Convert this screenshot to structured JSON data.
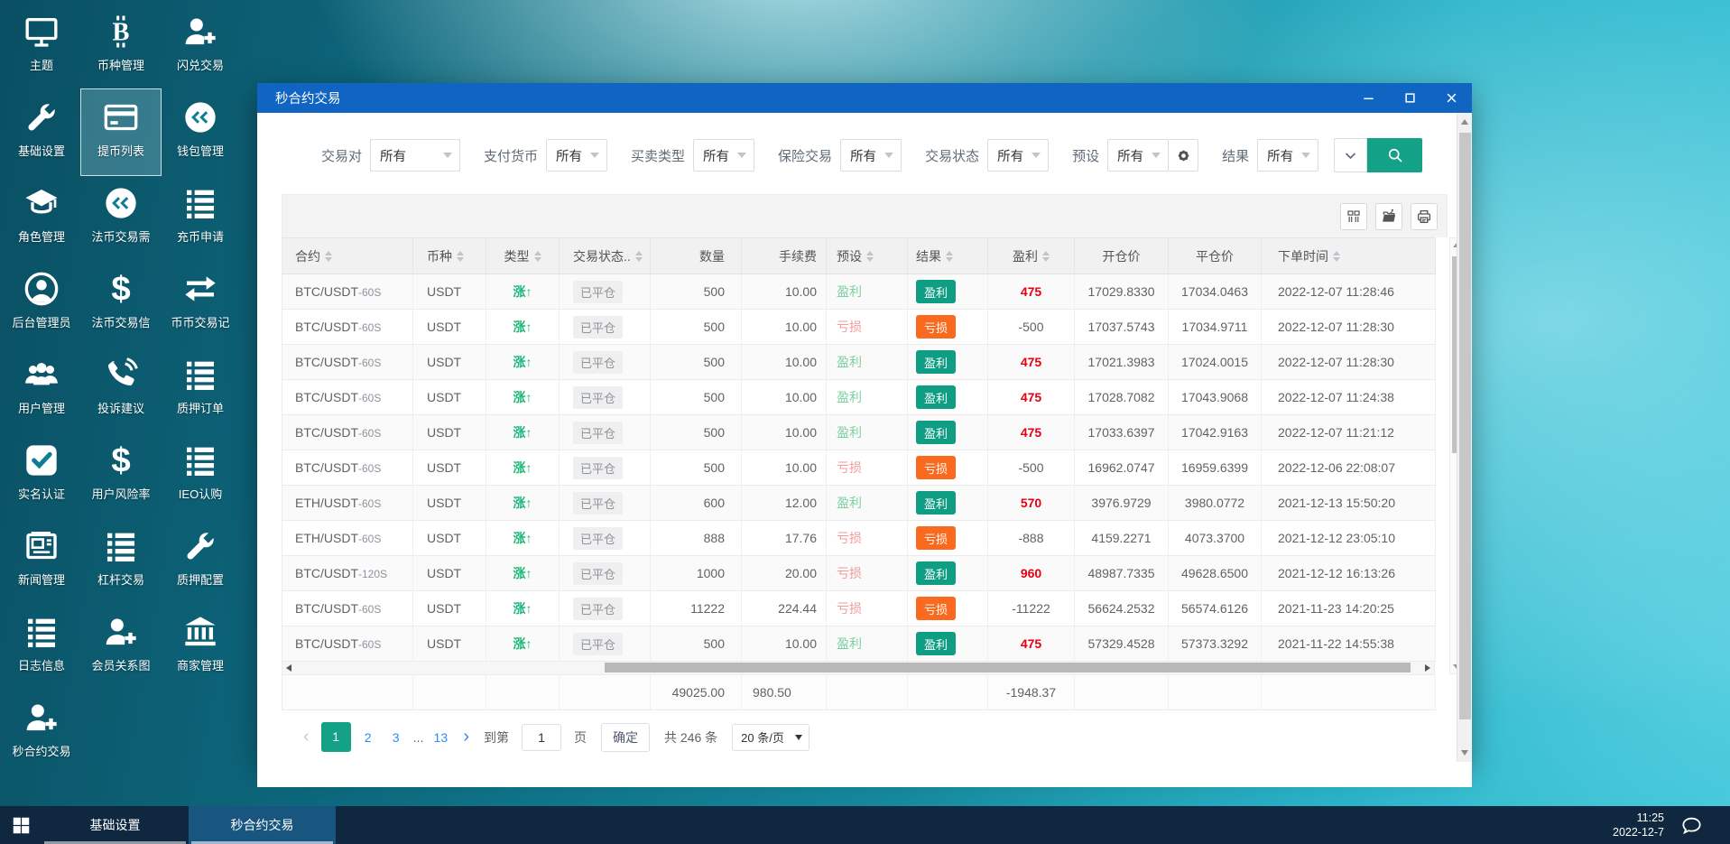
{
  "colors": {
    "titlebar": "#1065c3",
    "teal": "#13a287",
    "badge_win": "#0f9e83",
    "badge_loss": "#fa6a1e",
    "profit_red": "#e60012",
    "type_green": "#1db779",
    "preset_win": "#7fd0a2",
    "preset_loss": "#f29b9b",
    "link_blue": "#2d8cf0",
    "taskbar": "#0f2840"
  },
  "desktop": {
    "icons": [
      {
        "label": "主题",
        "icon": "monitor-icon"
      },
      {
        "label": "币种管理",
        "icon": "bitcoin-icon"
      },
      {
        "label": "闪兑交易",
        "icon": "user-plus-icon"
      },
      {
        "label": "基础设置",
        "icon": "wrench-icon"
      },
      {
        "label": "提币列表",
        "icon": "card-icon",
        "selected": true
      },
      {
        "label": "钱包管理",
        "icon": "coin-icon"
      },
      {
        "label": "角色管理",
        "icon": "graduation-cap-icon"
      },
      {
        "label": "法币交易需",
        "icon": "coin-icon"
      },
      {
        "label": "充币申请",
        "icon": "list-icon"
      },
      {
        "label": "后台管理员",
        "icon": "user-circle-icon"
      },
      {
        "label": "法币交易信",
        "icon": "dollar-icon"
      },
      {
        "label": "币币交易记",
        "icon": "swap-icon"
      },
      {
        "label": "用户管理",
        "icon": "users-icon"
      },
      {
        "label": "投诉建议",
        "icon": "phone-icon"
      },
      {
        "label": "质押订单",
        "icon": "list-icon"
      },
      {
        "label": "实名认证",
        "icon": "check-square-icon"
      },
      {
        "label": "用户风险率",
        "icon": "dollar-icon"
      },
      {
        "label": "IEO认购",
        "icon": "list-icon"
      },
      {
        "label": "新闻管理",
        "icon": "newspaper-icon"
      },
      {
        "label": "杠杆交易",
        "icon": "list-icon"
      },
      {
        "label": "质押配置",
        "icon": "wrench-icon"
      },
      {
        "label": "日志信息",
        "icon": "list-icon"
      },
      {
        "label": "会员关系图",
        "icon": "user-plus-icon"
      },
      {
        "label": "商家管理",
        "icon": "bank-icon"
      },
      {
        "label": "秒合约交易",
        "icon": "user-plus-icon"
      }
    ]
  },
  "window": {
    "title": "秒合约交易",
    "controls": [
      {
        "name": "minimize-button",
        "icon": "minimize-icon"
      },
      {
        "name": "maximize-button",
        "icon": "maximize-icon"
      },
      {
        "name": "close-button",
        "icon": "close-icon"
      }
    ],
    "filters": {
      "items": [
        {
          "label": "交易对",
          "value": "所有",
          "wide": true
        },
        {
          "label": "支付货币",
          "value": "所有"
        },
        {
          "label": "买卖类型",
          "value": "所有"
        },
        {
          "label": "保险交易",
          "value": "所有"
        },
        {
          "label": "交易状态",
          "value": "所有"
        },
        {
          "label": "预设",
          "value": "所有",
          "gear": true
        },
        {
          "label": "结果",
          "value": "所有"
        }
      ],
      "collapse_icon": "chevron-down-icon",
      "search_icon": "search-icon"
    },
    "toolbar": [
      {
        "name": "column-settings-button",
        "icon": "columns-icon"
      },
      {
        "name": "export-button",
        "icon": "export-icon"
      },
      {
        "name": "print-button",
        "icon": "print-icon"
      }
    ],
    "table": {
      "columns": [
        {
          "label": "合约",
          "sortable": true
        },
        {
          "label": "币种",
          "sortable": true
        },
        {
          "label": "类型",
          "sortable": true
        },
        {
          "label": "交易状态..",
          "sortable": true
        },
        {
          "label": "数量",
          "sortable": false
        },
        {
          "label": "手续费",
          "sortable": false
        },
        {
          "label": "预设",
          "sortable": true
        },
        {
          "label": "结果",
          "sortable": true
        },
        {
          "label": "盈利",
          "sortable": true
        },
        {
          "label": "开仓价",
          "sortable": false
        },
        {
          "label": "平仓价",
          "sortable": false
        },
        {
          "label": "下单时间",
          "sortable": true
        }
      ],
      "rows": [
        {
          "contract": "BTC/USDT",
          "period": "-60S",
          "coin": "USDT",
          "type": "涨↑",
          "status": "已平仓",
          "qty": "500",
          "fee": "10.00",
          "preset": "盈利",
          "preset_state": "win",
          "result": "盈利",
          "result_state": "win",
          "profit": "475",
          "profit_state": "win",
          "open_price": "17029.8330",
          "close_price": "17034.0463",
          "time": "2022-12-07 11:28:46"
        },
        {
          "contract": "BTC/USDT",
          "period": "-60S",
          "coin": "USDT",
          "type": "涨↑",
          "status": "已平仓",
          "qty": "500",
          "fee": "10.00",
          "preset": "亏损",
          "preset_state": "loss",
          "result": "亏损",
          "result_state": "loss",
          "profit": "-500",
          "profit_state": "loss",
          "open_price": "17037.5743",
          "close_price": "17034.9711",
          "time": "2022-12-07 11:28:30"
        },
        {
          "contract": "BTC/USDT",
          "period": "-60S",
          "coin": "USDT",
          "type": "涨↑",
          "status": "已平仓",
          "qty": "500",
          "fee": "10.00",
          "preset": "盈利",
          "preset_state": "win",
          "result": "盈利",
          "result_state": "win",
          "profit": "475",
          "profit_state": "win",
          "open_price": "17021.3983",
          "close_price": "17024.0015",
          "time": "2022-12-07 11:28:30"
        },
        {
          "contract": "BTC/USDT",
          "period": "-60S",
          "coin": "USDT",
          "type": "涨↑",
          "status": "已平仓",
          "qty": "500",
          "fee": "10.00",
          "preset": "盈利",
          "preset_state": "win",
          "result": "盈利",
          "result_state": "win",
          "profit": "475",
          "profit_state": "win",
          "open_price": "17028.7082",
          "close_price": "17043.9068",
          "time": "2022-12-07 11:24:38"
        },
        {
          "contract": "BTC/USDT",
          "period": "-60S",
          "coin": "USDT",
          "type": "涨↑",
          "status": "已平仓",
          "qty": "500",
          "fee": "10.00",
          "preset": "盈利",
          "preset_state": "win",
          "result": "盈利",
          "result_state": "win",
          "profit": "475",
          "profit_state": "win",
          "open_price": "17033.6397",
          "close_price": "17042.9163",
          "time": "2022-12-07 11:21:12"
        },
        {
          "contract": "BTC/USDT",
          "period": "-60S",
          "coin": "USDT",
          "type": "涨↑",
          "status": "已平仓",
          "qty": "500",
          "fee": "10.00",
          "preset": "亏损",
          "preset_state": "loss",
          "result": "亏损",
          "result_state": "loss",
          "profit": "-500",
          "profit_state": "loss",
          "open_price": "16962.0747",
          "close_price": "16959.6399",
          "time": "2022-12-06 22:08:07"
        },
        {
          "contract": "ETH/USDT",
          "period": "-60S",
          "coin": "USDT",
          "type": "涨↑",
          "status": "已平仓",
          "qty": "600",
          "fee": "12.00",
          "preset": "盈利",
          "preset_state": "win",
          "result": "盈利",
          "result_state": "win",
          "profit": "570",
          "profit_state": "win",
          "open_price": "3976.9729",
          "close_price": "3980.0772",
          "time": "2021-12-13 15:50:20"
        },
        {
          "contract": "ETH/USDT",
          "period": "-60S",
          "coin": "USDT",
          "type": "涨↑",
          "status": "已平仓",
          "qty": "888",
          "fee": "17.76",
          "preset": "亏损",
          "preset_state": "loss",
          "result": "亏损",
          "result_state": "loss",
          "profit": "-888",
          "profit_state": "loss",
          "open_price": "4159.2271",
          "close_price": "4073.3700",
          "time": "2021-12-12 23:05:10"
        },
        {
          "contract": "BTC/USDT",
          "period": "-120S",
          "coin": "USDT",
          "type": "涨↑",
          "status": "已平仓",
          "qty": "1000",
          "fee": "20.00",
          "preset": "亏损",
          "preset_state": "loss",
          "result": "盈利",
          "result_state": "win",
          "profit": "960",
          "profit_state": "win",
          "open_price": "48987.7335",
          "close_price": "49628.6500",
          "time": "2021-12-12 16:13:26"
        },
        {
          "contract": "BTC/USDT",
          "period": "-60S",
          "coin": "USDT",
          "type": "涨↑",
          "status": "已平仓",
          "qty": "11222",
          "fee": "224.44",
          "preset": "亏损",
          "preset_state": "loss",
          "result": "亏损",
          "result_state": "loss",
          "profit": "-11222",
          "profit_state": "loss",
          "open_price": "56624.2532",
          "close_price": "56574.6126",
          "time": "2021-11-23 14:20:25"
        },
        {
          "contract": "BTC/USDT",
          "period": "-60S",
          "coin": "USDT",
          "type": "涨↑",
          "status": "已平仓",
          "qty": "500",
          "fee": "10.00",
          "preset": "盈利",
          "preset_state": "win",
          "result": "盈利",
          "result_state": "win",
          "profit": "475",
          "profit_state": "win",
          "open_price": "57329.4528",
          "close_price": "57373.3292",
          "time": "2021-11-22 14:55:38"
        }
      ],
      "summary": {
        "qty": "49025.00",
        "fee": "980.50",
        "profit": "-1948.37"
      }
    },
    "pagination": {
      "prev": "‹",
      "pages": [
        "1",
        "2",
        "3",
        "...",
        "13"
      ],
      "active": "1",
      "next": "›",
      "goto_label": "到第",
      "goto_value": "1",
      "page_unit": "页",
      "confirm_label": "确定",
      "total_label": "共 246 条",
      "page_size": "20 条/页"
    }
  },
  "taskbar": {
    "start_icon": "windows-icon",
    "items": [
      {
        "label": "基础设置",
        "active": false
      },
      {
        "label": "秒合约交易",
        "active": true
      }
    ],
    "clock": {
      "time": "11:25",
      "date": "2022-12-7"
    },
    "chat_icon": "chat-icon"
  }
}
